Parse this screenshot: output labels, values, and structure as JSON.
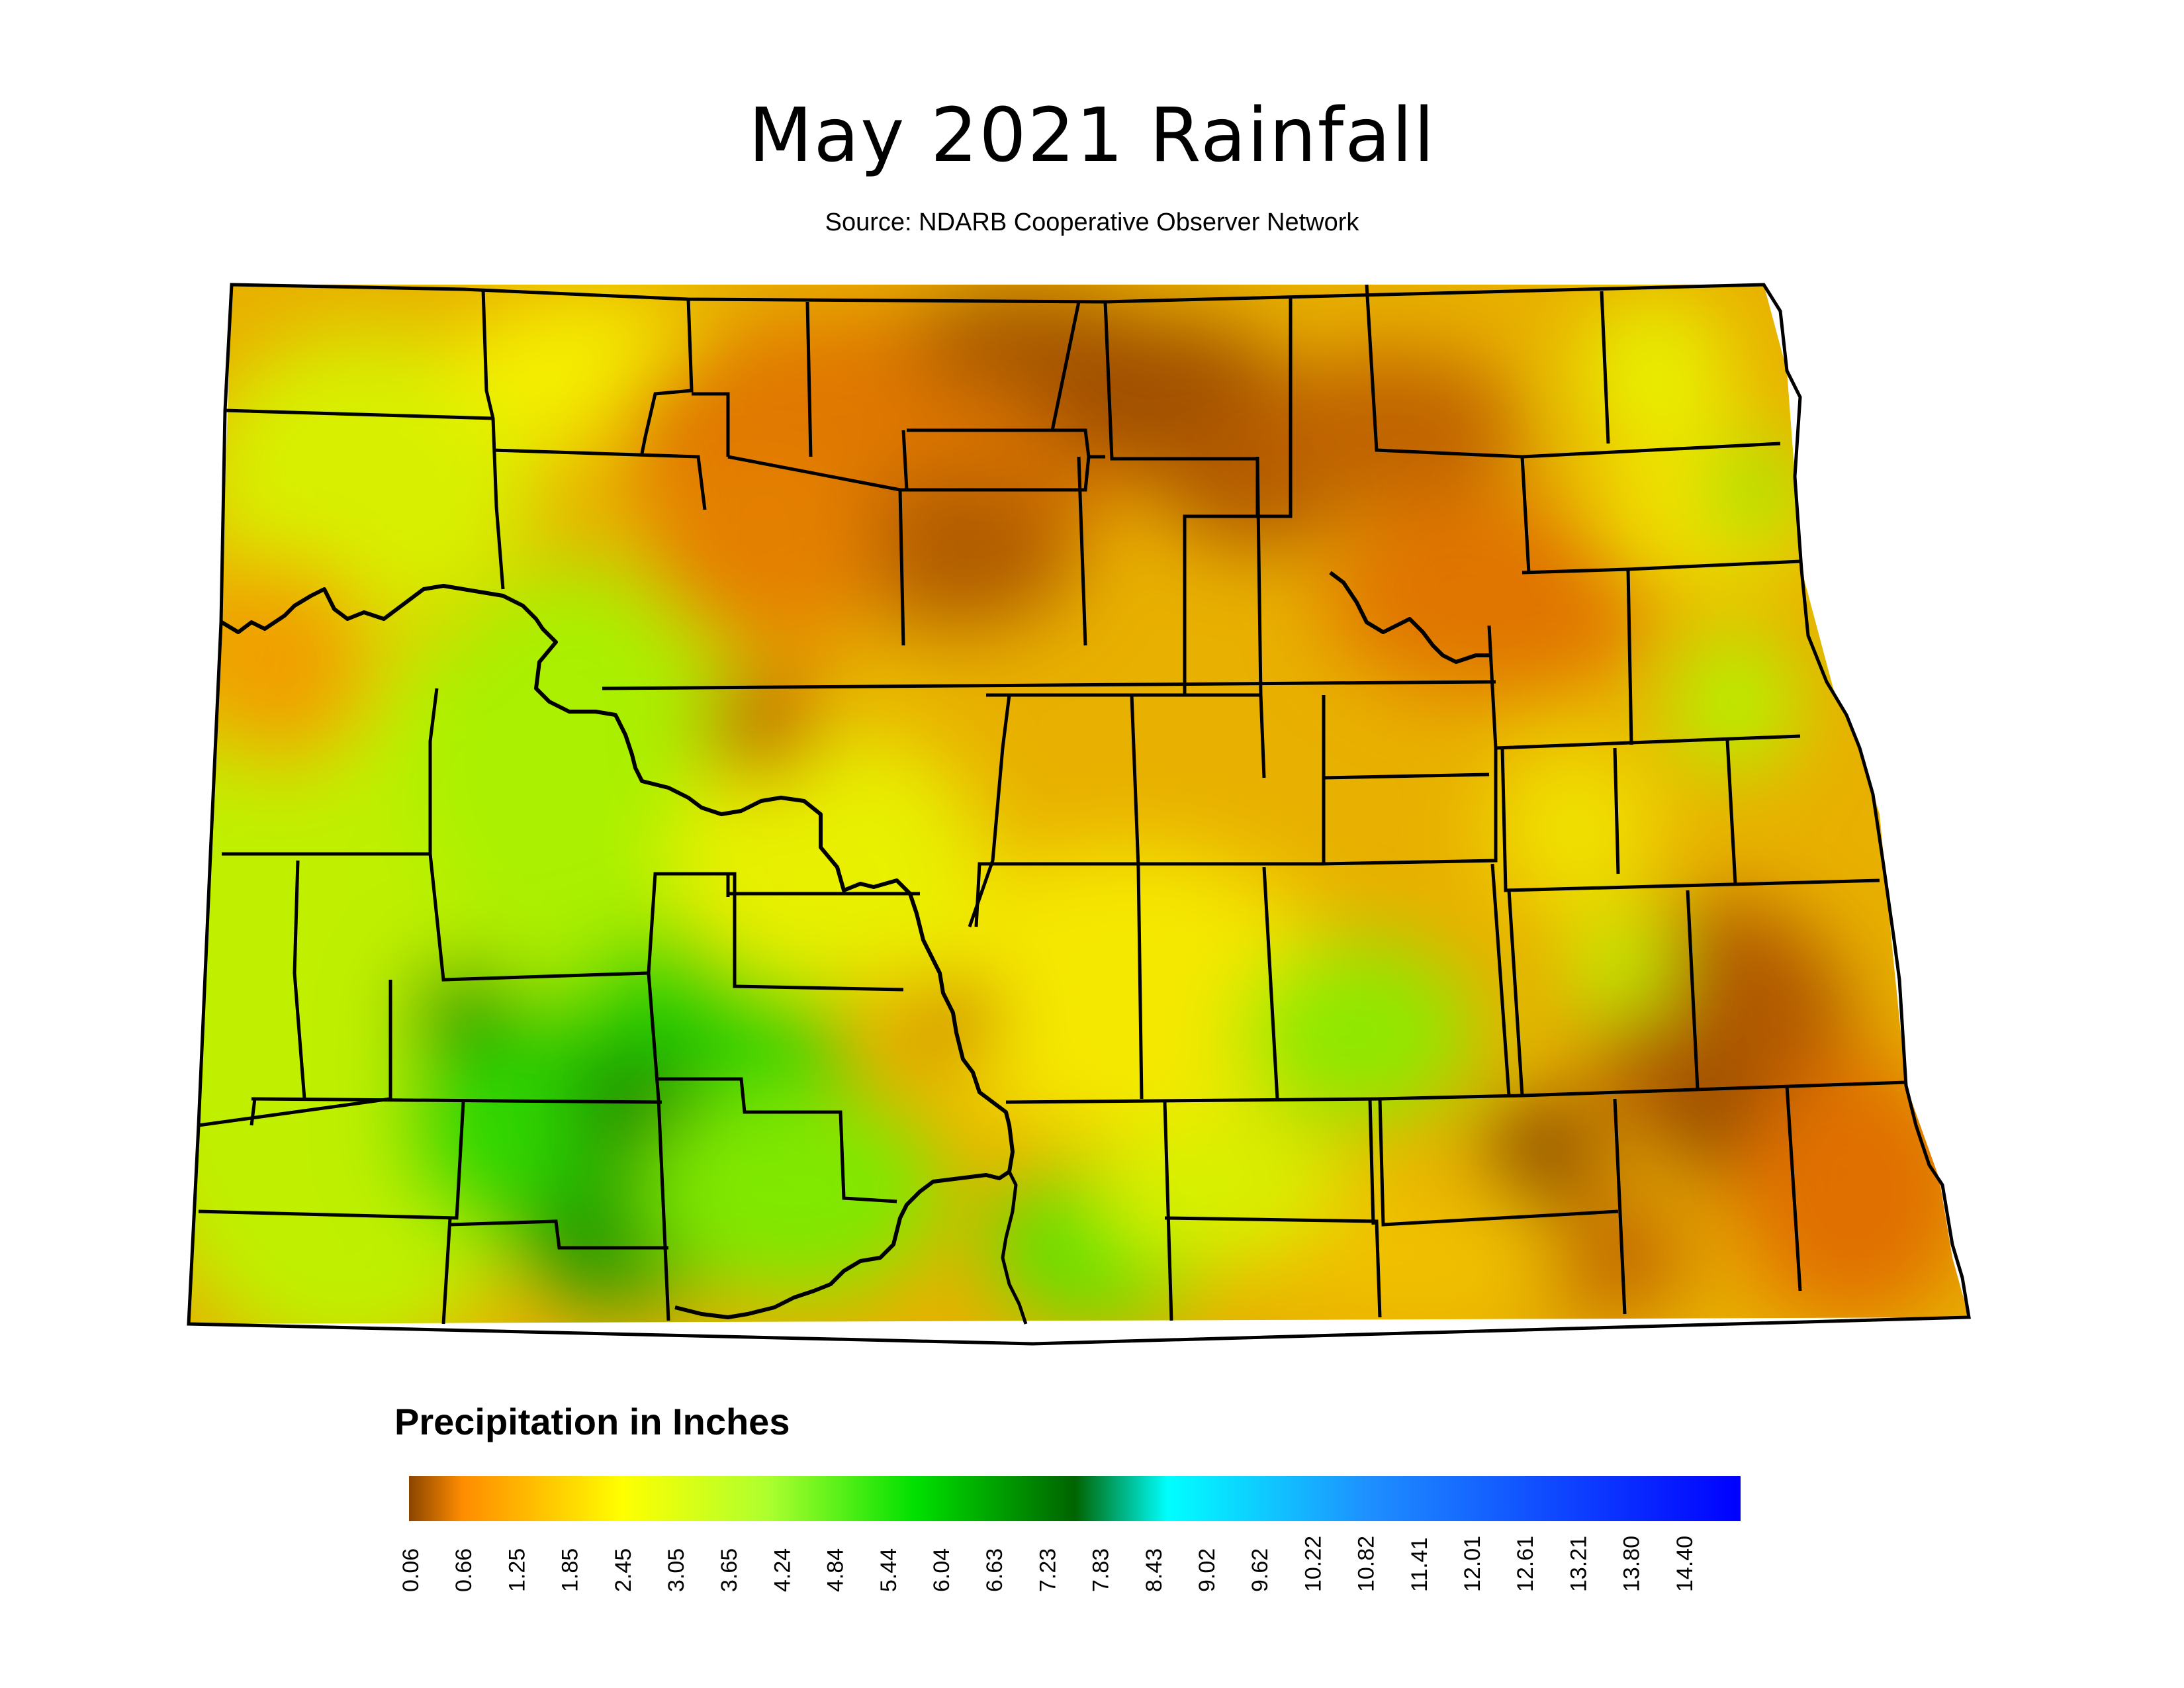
{
  "title": "May 2021 Rainfall",
  "source": "Source: NDARB Cooperative Observer Network",
  "legend": {
    "title": "Precipitation in Inches",
    "ticks": [
      "0.06",
      "0.66",
      "1.25",
      "1.85",
      "2.45",
      "3.05",
      "3.65",
      "4.24",
      "4.84",
      "5.44",
      "6.04",
      "6.63",
      "7.23",
      "7.83",
      "8.43",
      "9.02",
      "9.62",
      "10.22",
      "10.82",
      "11.41",
      "12.01",
      "12.61",
      "13.21",
      "13.80",
      "14.40"
    ],
    "colors": [
      "#8b4500",
      "#ff8c00",
      "#ffd700",
      "#ffff00",
      "#adff2f",
      "#00e000",
      "#006400",
      "#00ffff",
      "#1e90ff",
      "#0000ff"
    ]
  },
  "colors": {
    "border": "#000000",
    "dry": "#b85c00",
    "orange": "#f08a00",
    "yellow": "#f5f000",
    "lime": "#b8f000",
    "green": "#20d000",
    "darkgreen": "#1a8a00"
  }
}
